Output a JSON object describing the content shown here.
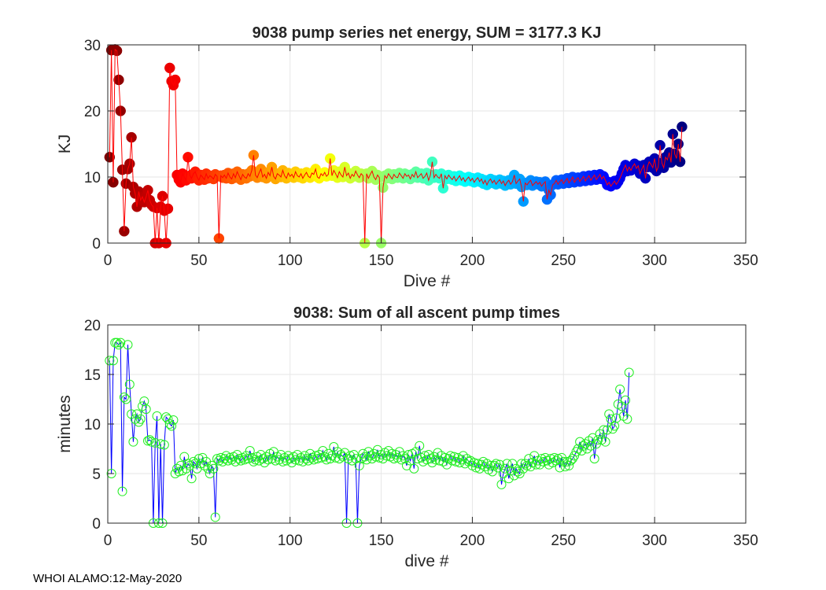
{
  "footer": "WHOI ALAMO:12-May-2020",
  "colors": {
    "energy_line": "#ff0000",
    "time_line": "#0000ff",
    "time_marker": "#22ee22",
    "grid": "#e6e6e6",
    "axis": "#262626"
  },
  "chart_data": [
    {
      "type": "scatter",
      "title": "9038 pump series net energy, SUM = 3177.3 KJ",
      "xlabel": "Dive #",
      "ylabel": "KJ",
      "xlim": [
        0,
        350
      ],
      "ylim": [
        0,
        30
      ],
      "xticks": [
        0,
        50,
        100,
        150,
        200,
        250,
        300,
        350
      ],
      "yticks": [
        0,
        10,
        20,
        30
      ],
      "grid": true,
      "marker_colormap": "jet by dive number",
      "x_start": 1,
      "values": [
        13.0,
        29.2,
        9.2,
        29.3,
        29.1,
        24.7,
        20.0,
        11.1,
        1.8,
        9.0,
        11.2,
        12.0,
        16.0,
        8.5,
        7.5,
        5.5,
        7.8,
        6.5,
        7.0,
        6.2,
        7.0,
        8.0,
        6.5,
        5.8,
        5.5,
        0,
        5.3,
        0,
        5.5,
        7.1,
        4.9,
        0,
        5.2,
        26.5,
        24.5,
        23.9,
        24.7,
        10.3,
        9.6,
        9.2,
        10.5,
        10.0,
        9.5,
        13.0,
        10.2,
        9.8,
        10.5,
        10.8,
        10.0,
        9.5,
        10.3,
        10.0,
        9.6,
        10.5,
        9.8,
        10.2,
        10.0,
        9.7,
        10.4,
        10.1,
        0.7,
        10.2,
        9.9,
        10.3,
        9.8,
        10.6,
        10.0,
        9.7,
        10.5,
        9.9,
        10.8,
        10.2,
        9.6,
        10.4,
        10.0,
        9.8,
        10.5,
        10.1,
        11.0,
        13.3,
        10.3,
        9.9,
        10.6,
        11.2,
        10.0,
        10.4,
        9.8,
        10.7,
        10.2,
        11.5,
        10.1,
        9.7,
        10.5,
        10.3,
        10.0,
        11.0,
        10.2,
        9.8,
        10.6,
        10.1,
        10.4,
        9.9,
        10.8,
        10.2,
        10.0,
        10.5,
        9.8,
        10.3,
        10.7,
        10.1,
        9.9,
        10.6,
        10.4,
        11.2,
        10.0,
        9.8,
        10.5,
        10.2,
        10.7,
        10.1,
        10.4,
        12.8,
        10.2,
        11.0,
        10.5,
        9.9,
        10.8,
        10.3,
        10.0,
        11.5,
        10.2,
        10.6,
        9.8,
        10.4,
        10.1,
        10.9,
        10.3,
        9.9,
        10.5,
        10.2,
        0,
        10.5,
        9.8,
        10.4,
        10.9,
        10.0,
        9.6,
        10.3,
        9.9,
        0,
        8.4,
        10.2,
        9.8,
        10.5,
        10.1,
        9.7,
        10.4,
        10.0,
        9.9,
        10.6,
        10.2,
        9.8,
        10.5,
        10.1,
        10.3,
        9.7,
        10.4,
        10.0,
        10.8,
        9.9,
        10.2,
        10.5,
        9.8,
        10.1,
        10.6,
        9.5,
        10.3,
        12.3,
        9.9,
        10.4,
        10.0,
        9.8,
        10.5,
        8.3,
        10.2,
        9.7,
        10.3,
        9.9,
        9.6,
        10.1,
        9.4,
        9.8,
        10.2,
        9.5,
        9.9,
        9.3,
        9.7,
        10.0,
        9.4,
        9.8,
        9.2,
        9.6,
        9.9,
        9.3,
        9.7,
        9.0,
        9.5,
        8.8,
        9.4,
        9.7,
        9.1,
        9.5,
        8.9,
        9.3,
        9.6,
        9.0,
        9.4,
        8.7,
        9.2,
        9.5,
        8.9,
        9.3,
        10.3,
        9.0,
        9.4,
        9.7,
        8.5,
        6.3,
        9.1,
        8.8,
        9.2,
        9.5,
        8.7,
        9.0,
        9.3,
        8.9,
        9.2,
        8.6,
        9.0,
        9.3,
        6.6,
        8.0,
        7.3,
        8.8,
        9.0,
        9.5,
        8.9,
        9.3,
        9.6,
        9.0,
        9.4,
        9.8,
        9.1,
        9.5,
        10.0,
        9.2,
        9.6,
        9.9,
        9.3,
        9.7,
        10.1,
        9.4,
        9.8,
        10.2,
        9.5,
        9.9,
        10.3,
        9.6,
        10.0,
        10.4,
        9.7,
        10.1,
        9.5,
        8.8,
        9.2,
        8.6,
        9.0,
        9.4,
        8.9,
        9.3,
        9.8,
        10.5,
        11.2,
        11.8,
        10.9,
        11.5,
        11.0,
        11.6,
        12.0,
        11.3,
        11.7,
        10.5,
        11.2,
        11.8,
        9.8,
        11.5,
        12.3,
        11.9,
        11.4,
        12.8,
        10.9,
        11.5,
        14.8,
        12.1,
        11.4,
        13.0,
        12.6,
        13.7,
        12.2,
        16.5,
        13.5,
        12.8,
        15.0,
        12.3,
        17.6
      ]
    },
    {
      "type": "line",
      "title": "9038: Sum of all ascent pump times",
      "xlabel": "dive #",
      "ylabel": "minutes",
      "xlim": [
        0,
        350
      ],
      "ylim": [
        0,
        20
      ],
      "xticks": [
        0,
        50,
        100,
        150,
        200,
        250,
        300,
        350
      ],
      "yticks": [
        0,
        5,
        10,
        15,
        20
      ],
      "grid": true,
      "marker": "open circle",
      "x_start": 1,
      "values": [
        16.4,
        5.0,
        16.4,
        18.2,
        18.2,
        18.0,
        18.2,
        3.2,
        12.7,
        12.5,
        18.0,
        14.0,
        11.0,
        8.2,
        10.5,
        11.0,
        10.2,
        10.5,
        11.8,
        12.3,
        11.5,
        8.3,
        8.4,
        8.2,
        0,
        8.1,
        10.8,
        0,
        8.0,
        0,
        7.9,
        10.7,
        10.5,
        10.0,
        9.8,
        10.4,
        5.0,
        5.5,
        5.2,
        5.8,
        5.3,
        6.7,
        5.5,
        6.0,
        5.8,
        4.5,
        6.2,
        6.0,
        5.5,
        6.5,
        6.0,
        6.6,
        5.8,
        6.2,
        5.5,
        5.0,
        5.8,
        5.5,
        0.6,
        6.5,
        6.3,
        6.6,
        6.2,
        6.5,
        6.8,
        6.3,
        6.6,
        6.4,
        6.7,
        6.2,
        6.9,
        6.5,
        6.3,
        6.6,
        6.4,
        6.8,
        6.5,
        7.3,
        6.6,
        6.2,
        6.4,
        6.7,
        6.3,
        6.9,
        6.5,
        6.1,
        6.7,
        6.4,
        7.0,
        6.5,
        7.2,
        6.3,
        6.7,
        6.4,
        6.9,
        6.2,
        6.6,
        6.3,
        6.8,
        6.5,
        6.1,
        6.7,
        6.4,
        6.9,
        6.3,
        6.6,
        6.2,
        6.8,
        6.5,
        6.3,
        7.0,
        6.6,
        6.4,
        6.8,
        6.5,
        6.9,
        6.6,
        7.3,
        6.7,
        6.4,
        7.0,
        6.5,
        6.8,
        7.7,
        6.6,
        7.2,
        6.5,
        6.9,
        6.7,
        7.1,
        0,
        6.5,
        6.8,
        6.3,
        6.9,
        6.5,
        0,
        5.8,
        6.5,
        7.0,
        6.7,
        6.4,
        7.2,
        6.8,
        6.5,
        7.0,
        6.7,
        7.4,
        6.6,
        6.9,
        6.5,
        7.1,
        6.8,
        7.3,
        6.7,
        7.0,
        6.5,
        6.9,
        6.6,
        7.2,
        6.4,
        6.8,
        6.5,
        5.8,
        6.9,
        6.3,
        7.0,
        5.5,
        7.2,
        6.5,
        7.8,
        6.6,
        6.2,
        6.8,
        6.4,
        6.9,
        6.5,
        6.1,
        6.7,
        6.4,
        7.1,
        6.3,
        6.8,
        6.2,
        6.6,
        5.9,
        6.5,
        6.8,
        6.3,
        6.7,
        6.2,
        6.6,
        6.1,
        6.4,
        6.8,
        6.0,
        6.5,
        6.2,
        6.3,
        5.8,
        6.1,
        5.6,
        6.0,
        5.5,
        5.9,
        6.2,
        5.7,
        6.0,
        5.4,
        5.8,
        5.2,
        5.8,
        6.0,
        5.6,
        5.9,
        3.9,
        5.0,
        5.5,
        6.0,
        4.5,
        5.3,
        6.0,
        4.8,
        5.5,
        5.2,
        5.0,
        6.0,
        5.5,
        6.0,
        5.8,
        6.5,
        5.7,
        6.1,
        6.8,
        5.9,
        6.3,
        5.9,
        6.5,
        6.2,
        6.6,
        6.3,
        5.9,
        6.5,
        6.1,
        6.6,
        6.3,
        6.5,
        5.6,
        6.6,
        6.2,
        5.7,
        6.2,
        5.8,
        6.3,
        6.5,
        6.8,
        7.2,
        7.5,
        8.2,
        7.3,
        7.8,
        8.0,
        7.5,
        8.3,
        7.8,
        8.6,
        6.5,
        8.0,
        8.4,
        9.0,
        8.4,
        9.4,
        8.2,
        9.4,
        11.0,
        10.5,
        9.5,
        9.8,
        10.6,
        12.0,
        13.5,
        11.8,
        10.8,
        12.4,
        10.5,
        15.2
      ]
    }
  ]
}
